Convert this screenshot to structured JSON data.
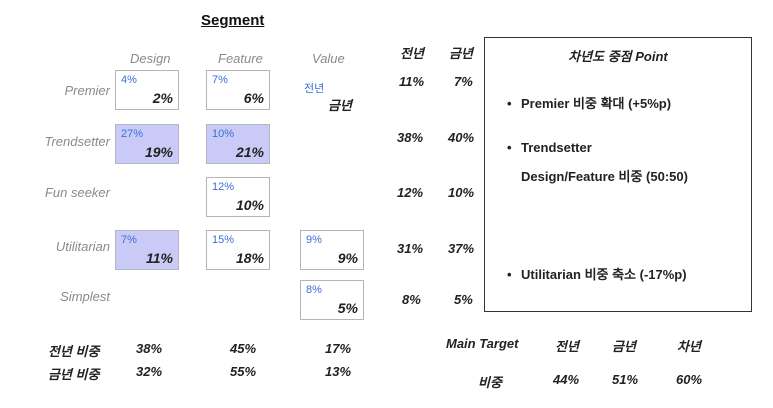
{
  "title": "Segment",
  "columns": [
    "Design",
    "Feature",
    "Value"
  ],
  "year_headers": [
    "전년",
    "금년"
  ],
  "rows": [
    {
      "label": "Premier",
      "prev_share": "11%",
      "curr_share": "7%"
    },
    {
      "label": "Trendsetter",
      "prev_share": "38%",
      "curr_share": "40%"
    },
    {
      "label": "Fun seeker",
      "prev_share": "12%",
      "curr_share": "10%"
    },
    {
      "label": "Utilitarian",
      "prev_share": "31%",
      "curr_share": "37%"
    },
    {
      "label": "Simplest",
      "prev_share": "8%",
      "curr_share": "5%"
    }
  ],
  "cells": [
    {
      "row": "Premier",
      "col": "Design",
      "prev": "4%",
      "curr": "2%",
      "highlight": false
    },
    {
      "row": "Premier",
      "col": "Feature",
      "prev": "7%",
      "curr": "6%",
      "highlight": false
    },
    {
      "row": "Trendsetter",
      "col": "Design",
      "prev": "27%",
      "curr": "19%",
      "highlight": true
    },
    {
      "row": "Trendsetter",
      "col": "Feature",
      "prev": "10%",
      "curr": "21%",
      "highlight": true
    },
    {
      "row": "Fun seeker",
      "col": "Feature",
      "prev": "12%",
      "curr": "10%",
      "highlight": false
    },
    {
      "row": "Utilitarian",
      "col": "Design",
      "prev": "7%",
      "curr": "11%",
      "highlight": true
    },
    {
      "row": "Utilitarian",
      "col": "Feature",
      "prev": "15%",
      "curr": "18%",
      "highlight": false
    },
    {
      "row": "Utilitarian",
      "col": "Value",
      "prev": "9%",
      "curr": "9%",
      "highlight": false
    },
    {
      "row": "Simplest",
      "col": "Value",
      "prev": "8%",
      "curr": "5%",
      "highlight": false
    }
  ],
  "legend": {
    "prev": "전년",
    "curr": "금년"
  },
  "totals": [
    {
      "label": "전년 비중",
      "values": [
        "38%",
        "45%",
        "17%"
      ]
    },
    {
      "label": "금년 비중",
      "values": [
        "32%",
        "55%",
        "13%"
      ]
    }
  ],
  "panel": {
    "title": "차년도 중점 Point",
    "bullets": [
      "Premier 비중 확대 (+5%p)",
      "Trendsetter",
      "Design/Feature 비중 (50:50)",
      "Utilitarian 비중 축소 (-17%p)"
    ]
  },
  "main_target": {
    "label": "Main Target",
    "headers": [
      "전년",
      "금년",
      "차년"
    ],
    "row_label": "비중",
    "values": [
      "44%",
      "51%",
      "60%"
    ]
  },
  "colors": {
    "highlight": "#c9caf5",
    "prev_value": "#3b6fd8",
    "label_gray": "#8a8a8a"
  }
}
